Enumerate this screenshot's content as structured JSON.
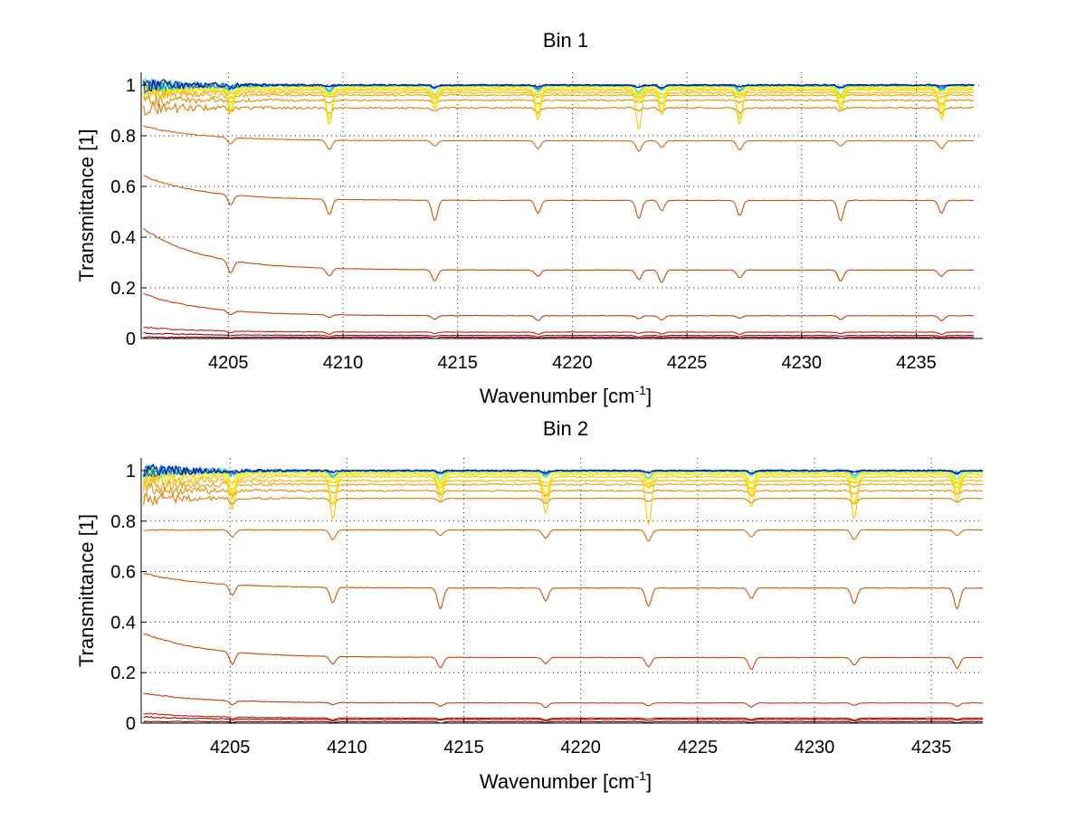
{
  "chart_data": [
    {
      "type": "line",
      "title": "Bin 1",
      "xlabel": {
        "base": "Wavenumber [cm",
        "sup": "-1",
        "close": "]"
      },
      "ylabel": "Transmittance [1]",
      "xlim": [
        4201.2,
        4237.9
      ],
      "ylim": [
        0,
        1.05
      ],
      "xticks": [
        4205,
        4210,
        4215,
        4220,
        4225,
        4230,
        4235
      ],
      "xtick_labels": [
        "4205",
        "4210",
        "4215",
        "4220",
        "4225",
        "4230",
        "4235"
      ],
      "yticks": [
        0,
        0.2,
        0.4,
        0.6,
        0.8,
        1
      ],
      "ytick_labels": [
        "0",
        "0.2",
        "0.4",
        "0.6",
        "0.8",
        "1"
      ],
      "grid": true,
      "x_end": 4237.5,
      "absorption_lines": [
        4205.1,
        4209.4,
        4214.0,
        4218.5,
        4222.9,
        4223.9,
        4227.3,
        4231.7,
        4236.1
      ],
      "series": [
        {
          "baseline": 0.005,
          "start_excess": 0.0,
          "color": "#7f0000"
        },
        {
          "baseline": 0.012,
          "start_excess": 0.01,
          "color": "#a80000"
        },
        {
          "baseline": 0.025,
          "start_excess": 0.02,
          "color": "#c01f00"
        },
        {
          "baseline": 0.09,
          "start_excess": 0.09,
          "color": "#c83a00"
        },
        {
          "baseline": 0.27,
          "start_excess": 0.17,
          "color": "#cc4500"
        },
        {
          "baseline": 0.545,
          "start_excess": 0.1,
          "color": "#d05000"
        },
        {
          "baseline": 0.78,
          "start_excess": 0.06,
          "color": "#da6400"
        },
        {
          "baseline": 0.91,
          "start_excess": 0.0,
          "color": "#e07800"
        },
        {
          "baseline": 0.94,
          "start_excess": 0.0,
          "color": "#e88c00"
        },
        {
          "baseline": 0.96,
          "start_excess": 0.0,
          "color": "#eea000"
        },
        {
          "baseline": 0.97,
          "start_excess": 0.0,
          "color": "#f4b400"
        },
        {
          "baseline": 0.98,
          "start_excess": 0.0,
          "color": "#f8c800"
        },
        {
          "baseline": 0.985,
          "start_excess": 0.0,
          "color": "#fcdc00"
        },
        {
          "baseline": 0.99,
          "start_excess": 0.0,
          "color": "#ffee00"
        },
        {
          "baseline": 0.995,
          "start_excess": 0.0,
          "color": "#d8f000"
        },
        {
          "baseline": 0.997,
          "start_excess": 0.0,
          "color": "#8fe88a"
        },
        {
          "baseline": 0.998,
          "start_excess": 0.0,
          "color": "#40d8d8"
        },
        {
          "baseline": 0.999,
          "start_excess": 0.0,
          "color": "#00b0e8"
        },
        {
          "baseline": 1.0,
          "start_excess": 0.0,
          "color": "#0060d0"
        },
        {
          "baseline": 1.0,
          "start_excess": 0.0,
          "color": "#0000a0"
        }
      ]
    },
    {
      "type": "line",
      "title": "Bin 2",
      "xlabel": {
        "base": "Wavenumber [cm",
        "sup": "-1",
        "close": "]"
      },
      "ylabel": "Transmittance [1]",
      "xlim": [
        4201.2,
        4237.2
      ],
      "ylim": [
        0,
        1.05
      ],
      "xticks": [
        4205,
        4210,
        4215,
        4220,
        4225,
        4230,
        4235
      ],
      "xtick_labels": [
        "4205",
        "4210",
        "4215",
        "4220",
        "4225",
        "4230",
        "4235"
      ],
      "yticks": [
        0,
        0.2,
        0.4,
        0.6,
        0.8,
        1
      ],
      "ytick_labels": [
        "0",
        "0.2",
        "0.4",
        "0.6",
        "0.8",
        "1"
      ],
      "grid": true,
      "x_end": 4237.2,
      "absorption_lines": [
        4205.1,
        4209.4,
        4214.0,
        4218.5,
        4222.9,
        4227.3,
        4231.7,
        4236.1
      ],
      "series": [
        {
          "baseline": 0.006,
          "start_excess": 0.0,
          "color": "#7f0000"
        },
        {
          "baseline": 0.015,
          "start_excess": 0.01,
          "color": "#a80000"
        },
        {
          "baseline": 0.02,
          "start_excess": 0.02,
          "color": "#c01f00"
        },
        {
          "baseline": 0.08,
          "start_excess": 0.04,
          "color": "#c83a00"
        },
        {
          "baseline": 0.26,
          "start_excess": 0.1,
          "color": "#cc4500"
        },
        {
          "baseline": 0.535,
          "start_excess": 0.06,
          "color": "#d05000"
        },
        {
          "baseline": 0.765,
          "start_excess": 0.0,
          "color": "#da6400"
        },
        {
          "baseline": 0.89,
          "start_excess": 0.0,
          "color": "#e07800"
        },
        {
          "baseline": 0.92,
          "start_excess": 0.0,
          "color": "#e88c00"
        },
        {
          "baseline": 0.945,
          "start_excess": 0.0,
          "color": "#eea000"
        },
        {
          "baseline": 0.96,
          "start_excess": 0.0,
          "color": "#f4b400"
        },
        {
          "baseline": 0.975,
          "start_excess": 0.0,
          "color": "#f8c800"
        },
        {
          "baseline": 0.985,
          "start_excess": 0.0,
          "color": "#fcdc00"
        },
        {
          "baseline": 0.99,
          "start_excess": 0.0,
          "color": "#ffee00"
        },
        {
          "baseline": 0.995,
          "start_excess": 0.0,
          "color": "#d8f000"
        },
        {
          "baseline": 0.997,
          "start_excess": 0.0,
          "color": "#8fe88a"
        },
        {
          "baseline": 0.998,
          "start_excess": 0.0,
          "color": "#40d8d8"
        },
        {
          "baseline": 0.999,
          "start_excess": 0.0,
          "color": "#00b0e8"
        },
        {
          "baseline": 1.0,
          "start_excess": 0.0,
          "color": "#0060d0"
        },
        {
          "baseline": 1.0,
          "start_excess": 0.0,
          "color": "#0000a0"
        }
      ]
    }
  ]
}
